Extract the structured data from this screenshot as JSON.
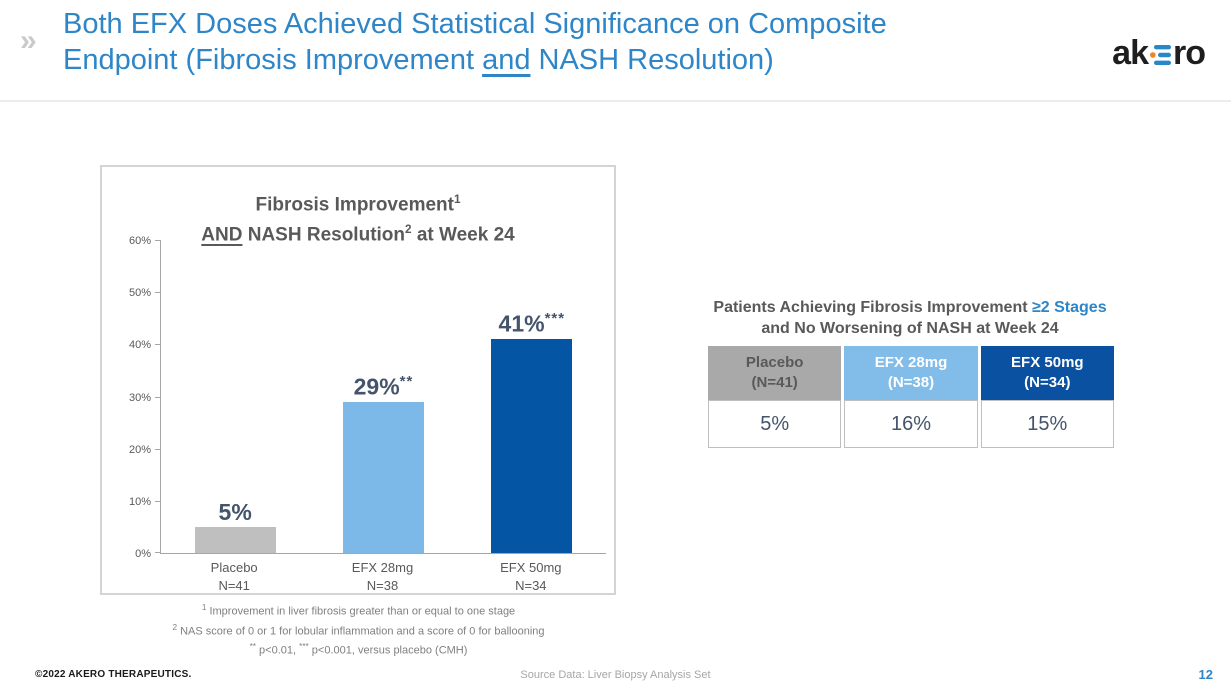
{
  "slide": {
    "chevron_glyph": "»",
    "title_line1": "Both EFX Doses Achieved Statistical Significance on Composite",
    "title_line2_pre": "Endpoint (Fibrosis Improvement ",
    "title_line2_underlined": "and",
    "title_line2_post": " NASH Resolution)",
    "page_number": "12",
    "copyright": "©2022 AKERO THERAPEUTICS.",
    "source_note": "Source Data: Liver Biopsy Analysis Set"
  },
  "logo": {
    "name": "akero",
    "text_left": "ak",
    "text_right": "ro",
    "e_bar_color": "#2787C8",
    "e_dot_color": "#F58220"
  },
  "colors": {
    "accent_blue": "#2E86C8",
    "text_gray": "#595959",
    "value_navy": "#44546A",
    "footnote_gray": "#7F7F7F"
  },
  "chart_data": {
    "type": "bar",
    "title_full": "Fibrosis Improvement¹ AND NASH Resolution² at Week 24",
    "title_line1": "Fibrosis Improvement",
    "title_line1_sup": "1",
    "title_line2_underlined": "AND",
    "title_line2": " NASH Resolution",
    "title_line2_sup": "2",
    "title_line2_post": " at Week 24",
    "categories": [
      "Placebo",
      "EFX 28mg",
      "EFX 50mg"
    ],
    "category_sublabels": [
      "N=41",
      "N=38",
      "N=34"
    ],
    "values": [
      5,
      29,
      41
    ],
    "value_labels": [
      "5%",
      "29%",
      "41%"
    ],
    "significance": [
      "",
      "**",
      "***"
    ],
    "bar_colors": [
      "#BFBFBF",
      "#7CB9E8",
      "#0455A4"
    ],
    "xlabel": "",
    "ylabel": "",
    "ylim": [
      0,
      60
    ],
    "yticks": [
      "0%",
      "10%",
      "20%",
      "30%",
      "40%",
      "50%",
      "60%"
    ],
    "ytick_values": [
      0,
      10,
      20,
      30,
      40,
      50,
      60
    ],
    "grid": false,
    "legend": false
  },
  "footnotes": {
    "f1_sup": "1",
    "f1_text": " Improvement in liver fibrosis greater than or equal to one stage",
    "f2_sup": "2",
    "f2_text": " NAS score of 0 or 1 for lobular inflammation and a score of 0 for ballooning",
    "f3_sig1": "**",
    "f3_t1": " p<0.01, ",
    "f3_sig2": "***",
    "f3_t2": " p<0.001, versus placebo (CMH)"
  },
  "table": {
    "title_pre": "Patients Achieving Fibrosis Improvement ",
    "title_highlight": "≥2 Stages",
    "title_line2": "and No Worsening of NASH at Week 24",
    "columns": [
      {
        "label": "Placebo",
        "sublabel": "(N=41)",
        "bg": "#A9A9A9",
        "text_color": "#595959"
      },
      {
        "label": "EFX 28mg",
        "sublabel": "(N=38)",
        "bg": "#82BDE9",
        "text_color": "#FFFFFF"
      },
      {
        "label": "EFX 50mg",
        "sublabel": "(N=34)",
        "bg": "#0B51A2",
        "text_color": "#FFFFFF"
      }
    ],
    "values": [
      "5%",
      "16%",
      "15%"
    ]
  }
}
